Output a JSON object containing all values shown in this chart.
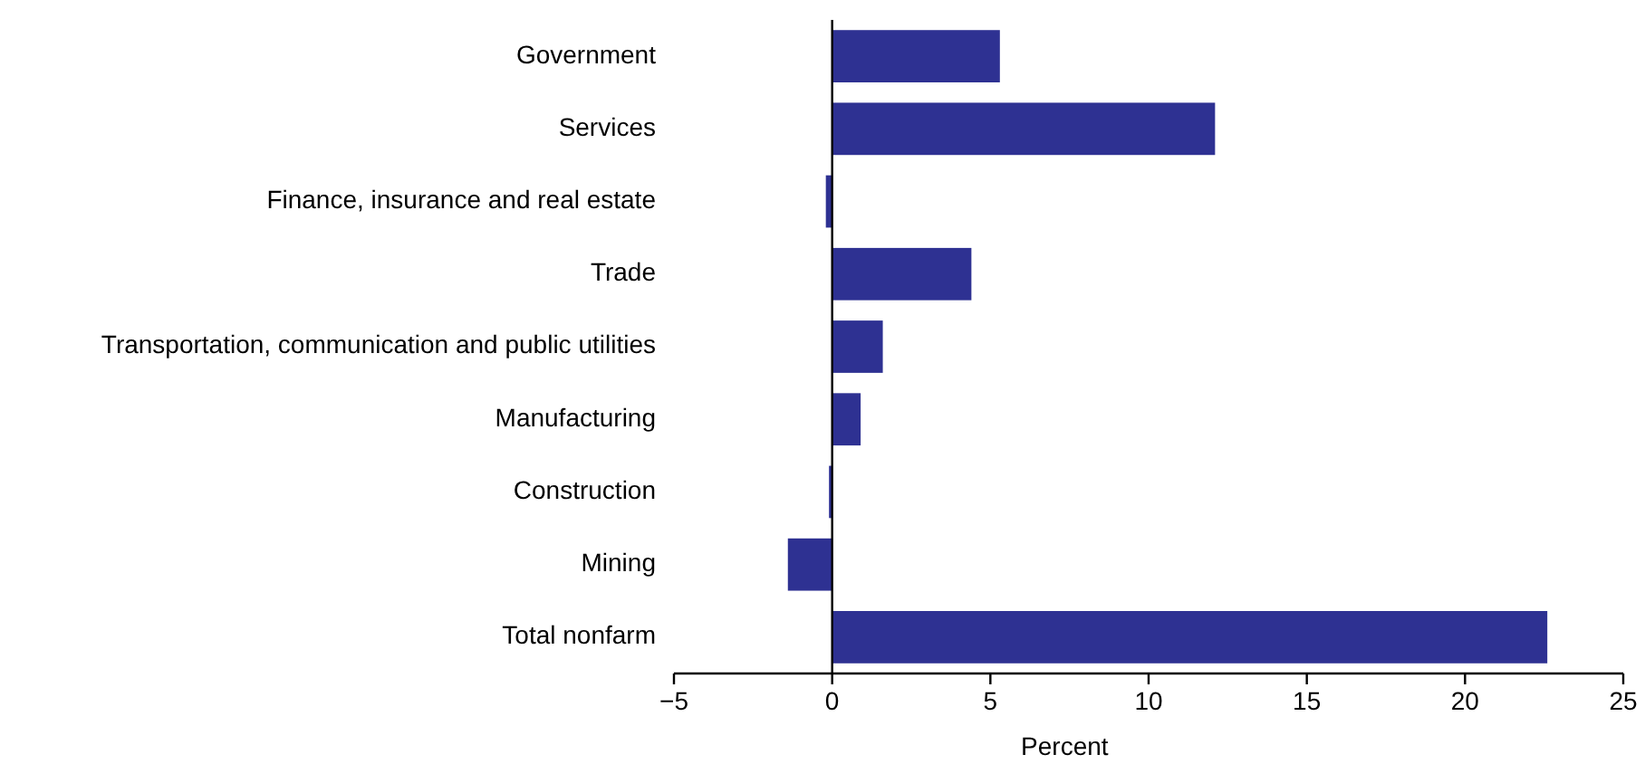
{
  "chart_data": {
    "type": "bar",
    "orientation": "horizontal",
    "xlabel": "Percent",
    "categories": [
      "Government",
      "Services",
      "Finance, insurance and real estate",
      "Trade",
      "Transportation, communication and public utilities",
      "Manufacturing",
      "Construction",
      "Mining",
      "Total nonfarm"
    ],
    "values": [
      5.3,
      12.1,
      -0.2,
      4.4,
      1.6,
      0.9,
      -0.1,
      -1.4,
      22.6
    ],
    "color": "#2e3192",
    "xlim": [
      -5,
      25
    ],
    "xticks": [
      {
        "value": -5,
        "label": "−5"
      },
      0,
      5,
      10,
      15,
      20,
      25
    ]
  }
}
